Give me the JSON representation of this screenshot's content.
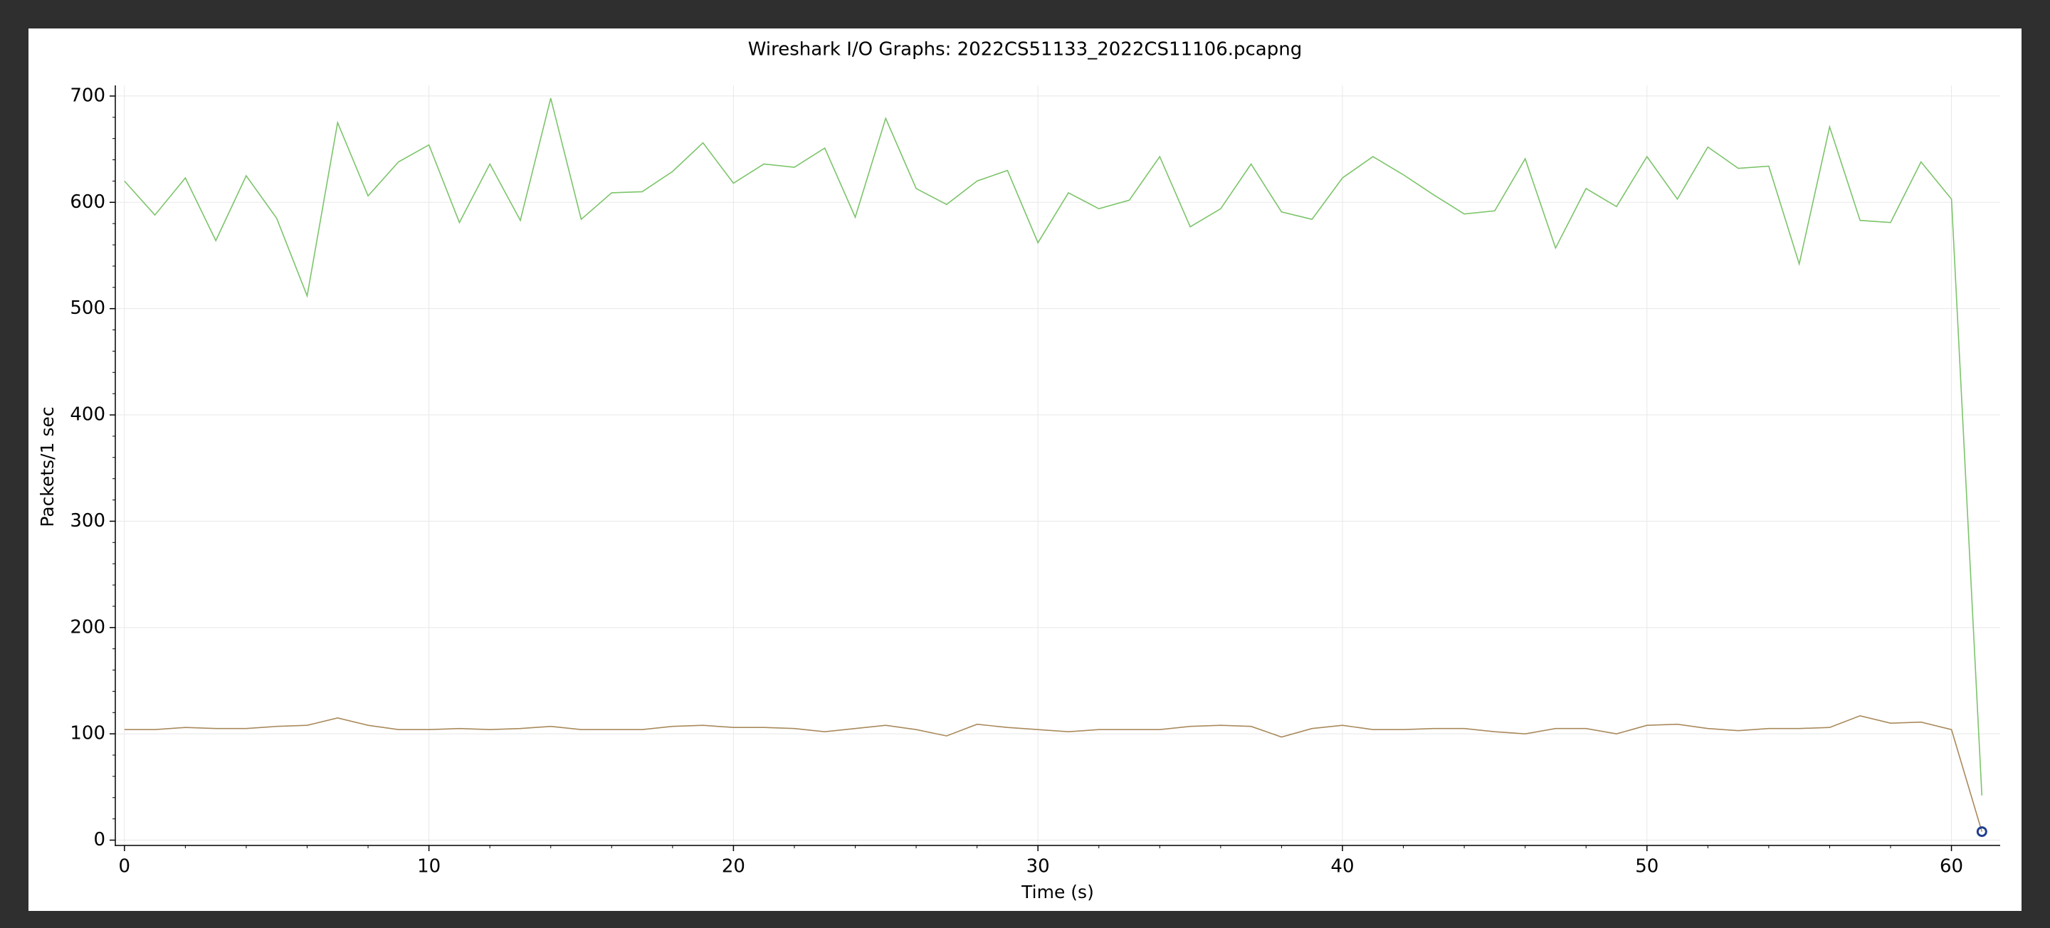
{
  "chart_data": {
    "type": "line",
    "title": "Wireshark I/O Graphs: 2022CS51133_2022CS11106.pcapng",
    "xlabel": "Time (s)",
    "ylabel": "Packets/1 sec",
    "xlim": [
      -0.3,
      61.6
    ],
    "ylim": [
      -5,
      710
    ],
    "xticks": [
      0,
      10,
      20,
      30,
      40,
      50,
      60
    ],
    "yticks": [
      0,
      100,
      200,
      300,
      400,
      500,
      600,
      700
    ],
    "grid": true,
    "legend": "none",
    "x": [
      0,
      1,
      2,
      3,
      4,
      5,
      6,
      7,
      8,
      9,
      10,
      11,
      12,
      13,
      14,
      15,
      16,
      17,
      18,
      19,
      20,
      21,
      22,
      23,
      24,
      25,
      26,
      27,
      28,
      29,
      30,
      31,
      32,
      33,
      34,
      35,
      36,
      37,
      38,
      39,
      40,
      41,
      42,
      43,
      44,
      45,
      46,
      47,
      48,
      49,
      50,
      51,
      52,
      53,
      54,
      55,
      56,
      57,
      58,
      59,
      60,
      61
    ],
    "series": [
      {
        "color": "#7cc46a",
        "values": [
          620,
          588,
          623,
          564,
          625,
          585,
          512,
          675,
          606,
          638,
          654,
          581,
          636,
          583,
          698,
          584,
          609,
          610,
          629,
          656,
          618,
          636,
          633,
          651,
          586,
          679,
          613,
          598,
          620,
          630,
          562,
          609,
          594,
          602,
          643,
          577,
          594,
          636,
          591,
          584,
          623,
          643,
          626,
          607,
          589,
          592,
          641,
          557,
          613,
          596,
          643,
          603,
          652,
          632,
          634,
          542,
          671,
          583,
          581,
          638,
          603,
          42
        ]
      },
      {
        "color": "#a98a5c",
        "values": [
          104,
          104,
          106,
          105,
          105,
          107,
          108,
          115,
          108,
          104,
          104,
          105,
          104,
          105,
          107,
          104,
          104,
          104,
          107,
          108,
          106,
          106,
          105,
          102,
          105,
          108,
          104,
          98,
          109,
          106,
          104,
          102,
          104,
          104,
          104,
          107,
          108,
          107,
          97,
          105,
          108,
          104,
          104,
          105,
          105,
          102,
          100,
          105,
          105,
          100,
          108,
          109,
          105,
          103,
          105,
          105,
          106,
          117,
          110,
          111,
          104,
          8
        ]
      }
    ],
    "marker": {
      "x": 61,
      "y": 8,
      "color": "#1f3f8f"
    },
    "colors": {
      "grid": "#e8e8e8",
      "axis": "#000000",
      "frame_background": "#ffffff",
      "outer_background": "#2f2f2f"
    }
  }
}
